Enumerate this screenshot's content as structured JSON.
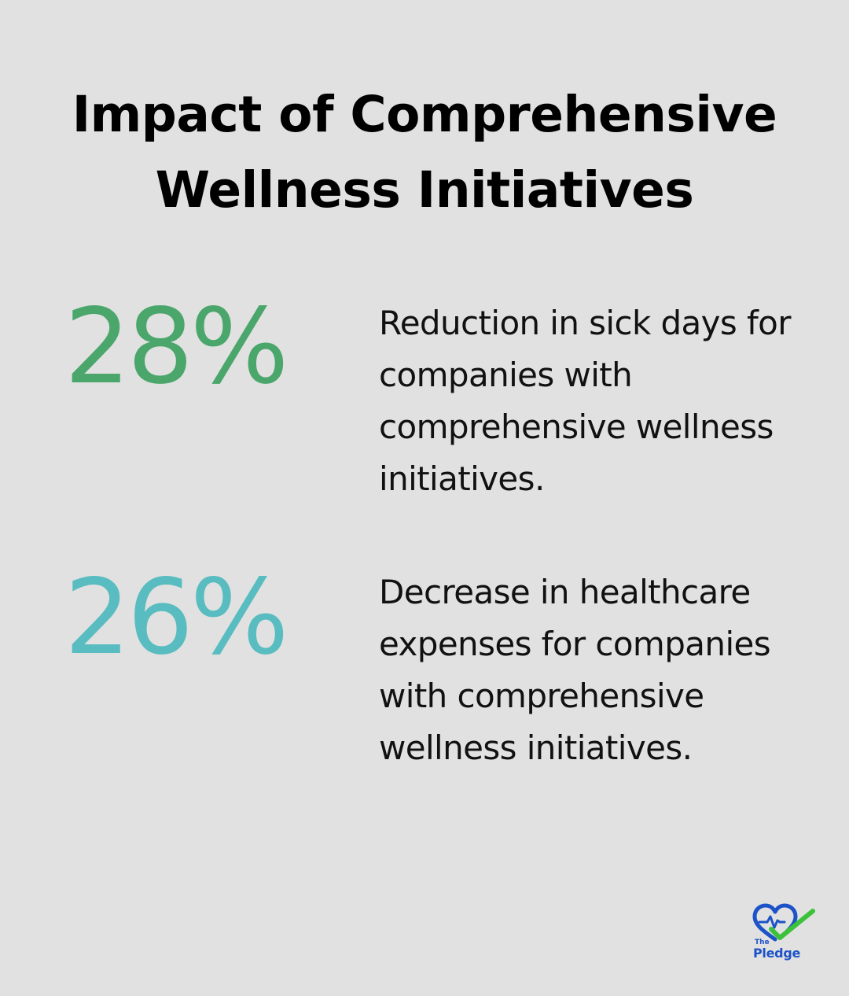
{
  "title": {
    "line1": "Impact of Comprehensive",
    "line2": "Wellness Initiatives"
  },
  "stats": [
    {
      "value": "28%",
      "color": "#4aa66b",
      "description": "Reduction in sick days for companies with comprehensive wellness initiatives."
    },
    {
      "value": "26%",
      "color": "#58bcc0",
      "description": "Decrease in healthcare expenses for companies with comprehensive wellness initiatives."
    }
  ],
  "logo": {
    "line1": "The",
    "line2": "Pledge",
    "heart_color": "#1d52c8",
    "check_color": "#3cc23a"
  }
}
